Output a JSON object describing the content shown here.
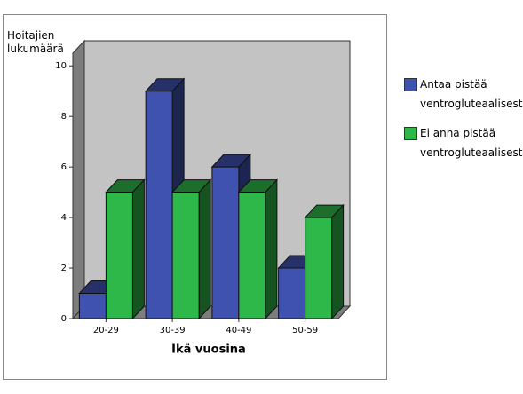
{
  "chart_data": {
    "type": "bar3d",
    "ylabel": "Hoitajien lukumäärä",
    "xlabel": "Ikä vuosina",
    "categories": [
      "20-29",
      "30-39",
      "40-49",
      "50-59"
    ],
    "series": [
      {
        "name": "Antaa pistää ventrogluteaalisesti",
        "color": "#3f52b0",
        "values": [
          1,
          9,
          6,
          2
        ]
      },
      {
        "name": "Ei anna pistää ventrogluteaalisesti",
        "color": "#2fb84a",
        "values": [
          5,
          5,
          5,
          4
        ]
      }
    ],
    "ylim": [
      0,
      10.5
    ],
    "yticks": [
      0,
      2,
      4,
      6,
      8,
      10
    ]
  }
}
